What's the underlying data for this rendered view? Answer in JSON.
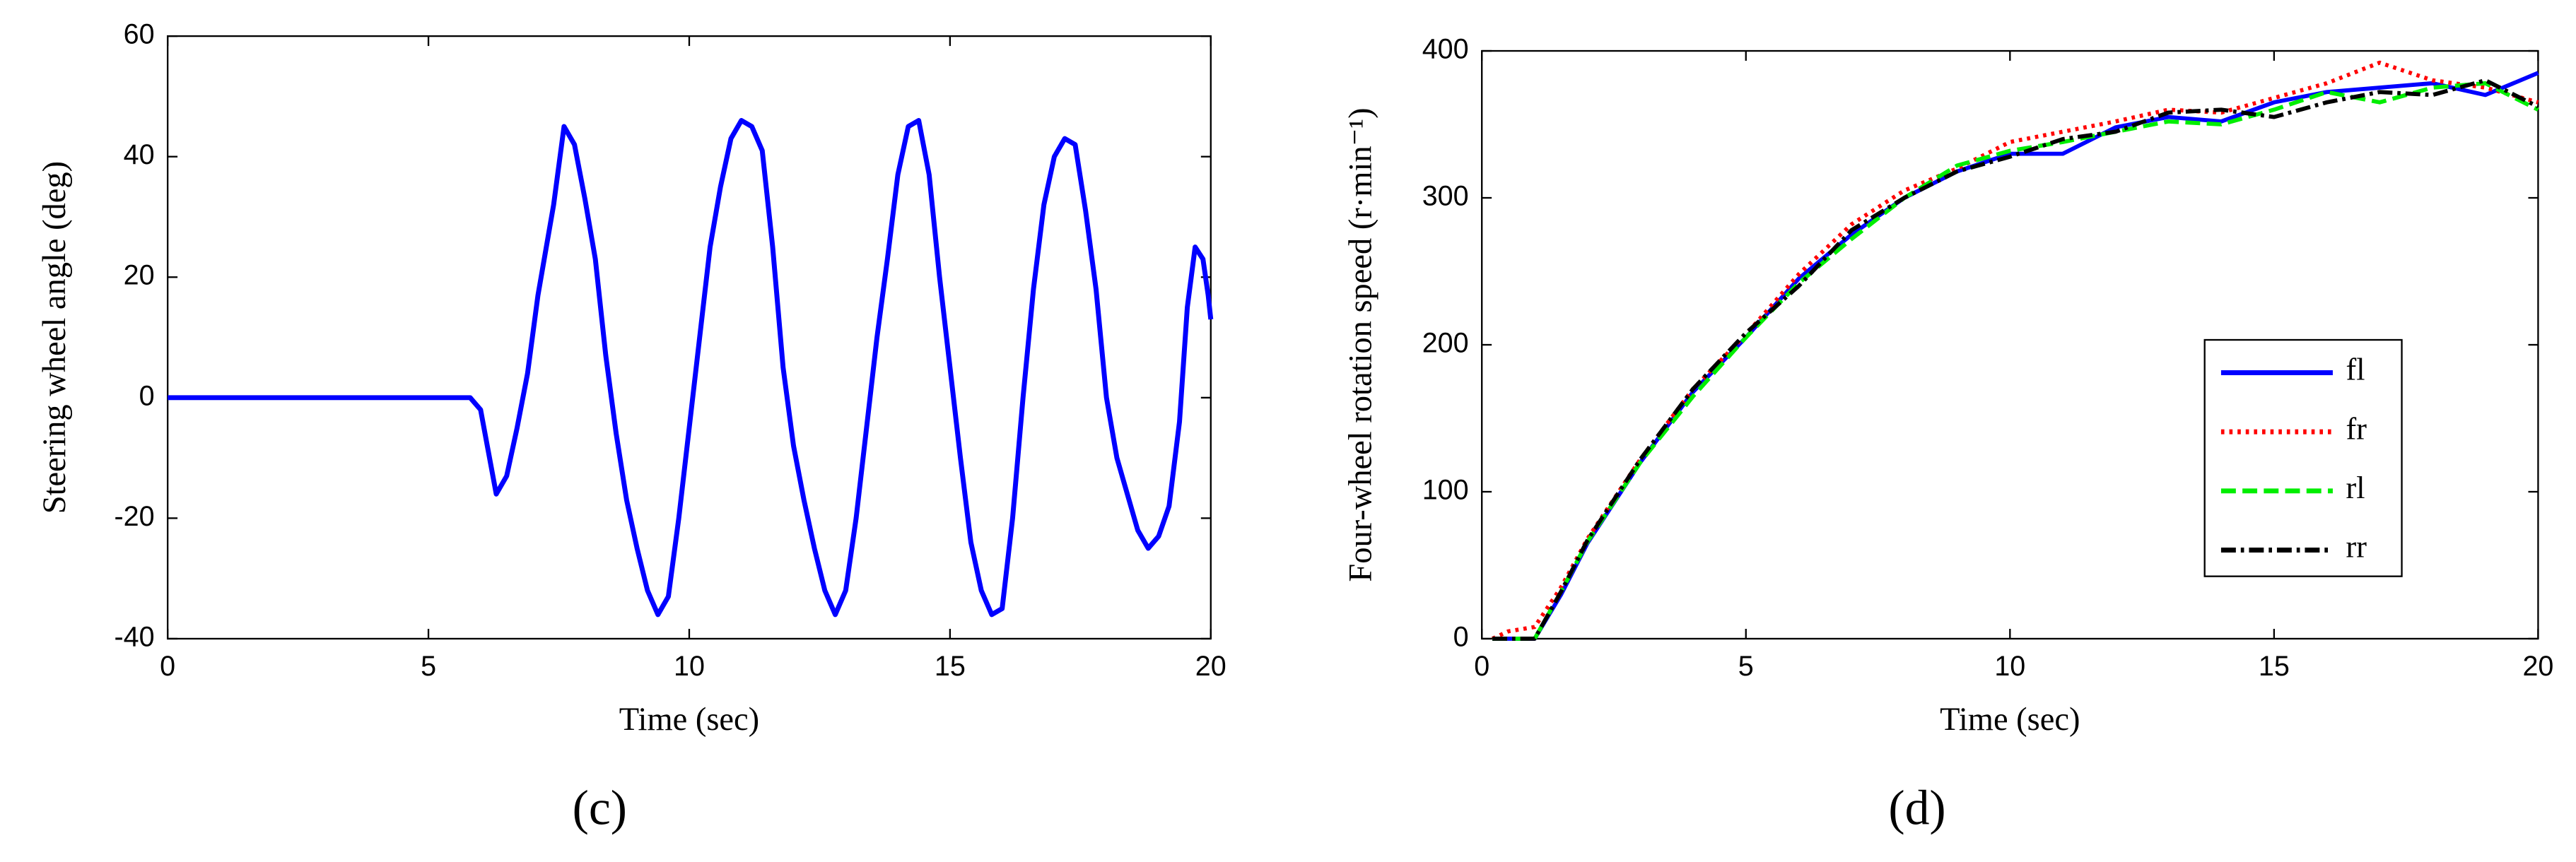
{
  "chart_data": [
    {
      "type": "line",
      "caption": "(c)",
      "xlabel": "Time (sec)",
      "ylabel": "Steering wheel angle (deg)",
      "xlim": [
        0,
        20
      ],
      "ylim": [
        -40,
        60
      ],
      "xticks": [
        0,
        5,
        10,
        15,
        20
      ],
      "yticks": [
        -40,
        -20,
        0,
        20,
        40,
        60
      ],
      "x": [
        0,
        5.8,
        6.0,
        6.3,
        6.5,
        6.7,
        6.9,
        7.1,
        7.4,
        7.6,
        7.8,
        8.0,
        8.2,
        8.4,
        8.6,
        8.8,
        9.0,
        9.2,
        9.4,
        9.6,
        9.8,
        10.0,
        10.2,
        10.4,
        10.6,
        10.8,
        11.0,
        11.2,
        11.4,
        11.6,
        11.8,
        12.0,
        12.2,
        12.4,
        12.6,
        12.8,
        13.0,
        13.2,
        13.4,
        13.6,
        13.8,
        14.0,
        14.2,
        14.4,
        14.6,
        14.8,
        15.0,
        15.2,
        15.4,
        15.6,
        15.8,
        16.0,
        16.2,
        16.4,
        16.6,
        16.8,
        17.0,
        17.2,
        17.4,
        17.6,
        17.8,
        18.0,
        18.2,
        18.4,
        18.6,
        18.8,
        19.0,
        19.2,
        19.4,
        19.55,
        19.7,
        19.85,
        19.95,
        20
      ],
      "series": [
        {
          "color": "#0000ff",
          "dash": "solid",
          "values": [
            0,
            0,
            -2,
            -16,
            -13,
            -5,
            4,
            17,
            32,
            45,
            42,
            33,
            23,
            7,
            -6,
            -17,
            -25,
            -32,
            -36,
            -33,
            -20,
            -5,
            10,
            25,
            35,
            43,
            46,
            45,
            41,
            25,
            5,
            -8,
            -17,
            -25,
            -32,
            -36,
            -32,
            -20,
            -5,
            10,
            23,
            37,
            45,
            46,
            37,
            20,
            5,
            -10,
            -24,
            -32,
            -36,
            -35,
            -20,
            0,
            18,
            32,
            40,
            43,
            42,
            31,
            18,
            0,
            -10,
            -16,
            -22,
            -25,
            -23,
            -18,
            -4,
            15,
            25,
            23,
            17,
            13
          ]
        }
      ]
    },
    {
      "type": "line",
      "caption": "(d)",
      "xlabel": "Time (sec)",
      "ylabel": "Four-wheel rotation speed (r·min⁻¹)",
      "xlim": [
        0,
        20
      ],
      "ylim": [
        0,
        400
      ],
      "xticks": [
        0,
        5,
        10,
        15,
        20
      ],
      "yticks": [
        0,
        100,
        200,
        300,
        400
      ],
      "legend": "right",
      "x": [
        0.2,
        0.5,
        1,
        1.5,
        2,
        3,
        4,
        5,
        6,
        7,
        8,
        9,
        10,
        11,
        12,
        13,
        14,
        15,
        16,
        17,
        18,
        19,
        20
      ],
      "series": [
        {
          "name": "fl",
          "color": "#0000ff",
          "dash": "solid",
          "values": [
            0,
            0,
            0,
            30,
            65,
            120,
            168,
            205,
            245,
            275,
            300,
            318,
            330,
            330,
            348,
            355,
            352,
            365,
            372,
            375,
            378,
            370,
            385
          ]
        },
        {
          "name": "fr",
          "color": "#ff0000",
          "dash": "dotted",
          "values": [
            0,
            5,
            8,
            35,
            68,
            122,
            170,
            207,
            248,
            282,
            305,
            320,
            338,
            345,
            352,
            360,
            358,
            368,
            378,
            392,
            380,
            375,
            365
          ]
        },
        {
          "name": "rl",
          "color": "#00ee00",
          "dash": "dashed",
          "values": [
            0,
            0,
            0,
            32,
            66,
            120,
            165,
            205,
            242,
            272,
            300,
            322,
            332,
            338,
            345,
            352,
            350,
            360,
            372,
            365,
            375,
            378,
            360
          ]
        },
        {
          "name": "rr",
          "color": "#000000",
          "dash": "dashdot",
          "values": [
            0,
            0,
            0,
            32,
            67,
            122,
            170,
            208,
            240,
            278,
            300,
            318,
            328,
            340,
            345,
            358,
            360,
            355,
            365,
            372,
            370,
            380,
            362
          ]
        }
      ]
    }
  ]
}
